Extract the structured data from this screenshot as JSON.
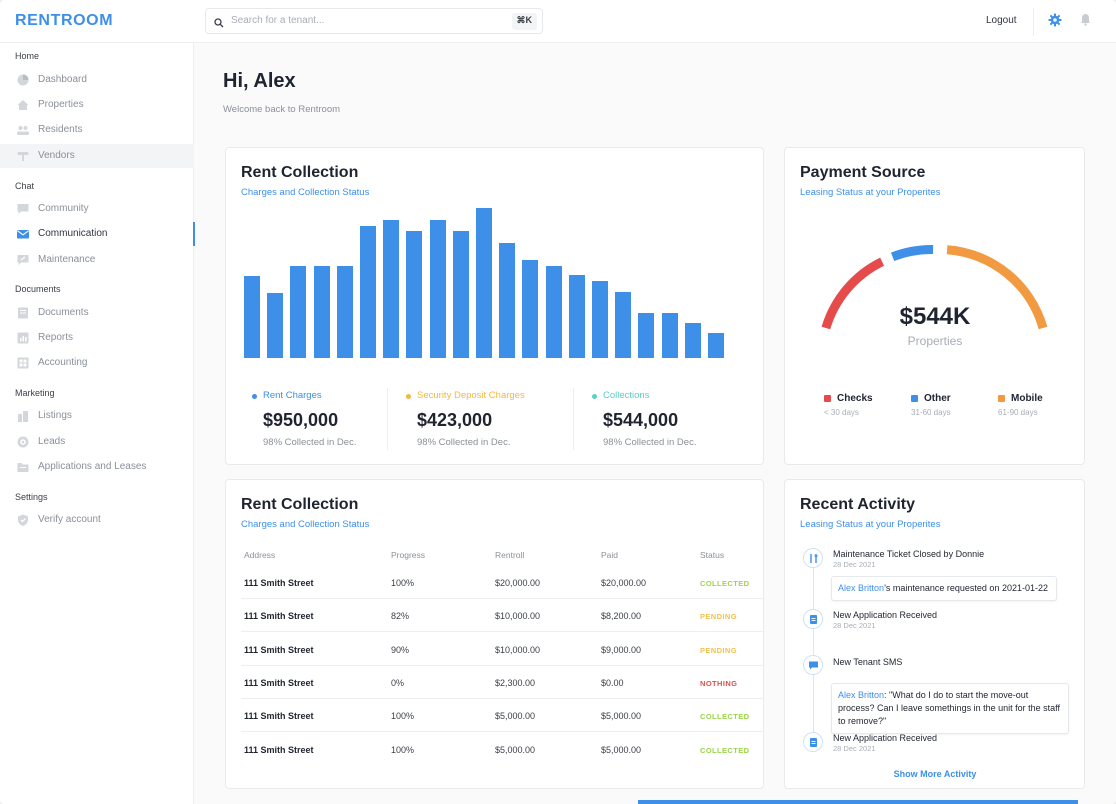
{
  "brand": "RENTROOM",
  "search": {
    "placeholder": "Search for a tenant...",
    "shortcut": "⌘K"
  },
  "header": {
    "logout": "Logout"
  },
  "sidebar": {
    "sections": [
      {
        "title": "Home",
        "items": [
          {
            "label": "Dashboard",
            "icon": "dashboard-icon"
          },
          {
            "label": "Properties",
            "icon": "home-icon"
          },
          {
            "label": "Residents",
            "icon": "people-icon"
          },
          {
            "label": "Vendors",
            "icon": "tools-icon"
          }
        ]
      },
      {
        "title": "Chat",
        "items": [
          {
            "label": "Community",
            "icon": "chat-icon"
          },
          {
            "label": "Communication",
            "icon": "mail-icon"
          },
          {
            "label": "Maintenance",
            "icon": "maintenance-icon"
          }
        ]
      },
      {
        "title": "Documents",
        "items": [
          {
            "label": "Documents",
            "icon": "document-icon"
          },
          {
            "label": "Reports",
            "icon": "report-icon"
          },
          {
            "label": "Accounting",
            "icon": "calculator-icon"
          }
        ]
      },
      {
        "title": "Marketing",
        "items": [
          {
            "label": "Listings",
            "icon": "building-icon"
          },
          {
            "label": "Leads",
            "icon": "target-icon"
          },
          {
            "label": "Applications and Leases",
            "icon": "folder-icon"
          }
        ]
      },
      {
        "title": "Settings",
        "items": [
          {
            "label": "Verify account",
            "icon": "shield-icon"
          }
        ]
      }
    ]
  },
  "greeting": {
    "title": "Hi, Alex",
    "subtitle": "Welcome back to Rentroom"
  },
  "rent_collection_chart": {
    "title": "Rent Collection",
    "subtitle": "Charges and Collection Status",
    "stats": [
      {
        "name": "Rent Charges",
        "value": "$950,000",
        "note": "98% Collected in Dec.",
        "color": "#3d8fe8"
      },
      {
        "name": "Security Deposit Charges",
        "value": "$423,000",
        "note": "98% Collected in Dec.",
        "color": "#f2b93b"
      },
      {
        "name": "Collections",
        "value": "$544,000",
        "note": "98% Collected in Dec.",
        "color": "#5ccfc0"
      }
    ]
  },
  "chart_data": {
    "type": "bar",
    "values": [
      82,
      65,
      92,
      92,
      92,
      132,
      138,
      127,
      138,
      127,
      150,
      115,
      98,
      92,
      83,
      77,
      66,
      45,
      45,
      35,
      25
    ],
    "ylim": [
      0,
      150
    ],
    "color": "#3d8fe8"
  },
  "payment_source": {
    "title": "Payment Source",
    "subtitle": "Leasing Status at your Properites",
    "value": "$544K",
    "label": "Properties",
    "legend": [
      {
        "name": "Checks",
        "range": "< 30 days",
        "color": "#e54b4b"
      },
      {
        "name": "Other",
        "range": "31-60 days",
        "color": "#3d8fe8"
      },
      {
        "name": "Mobile",
        "range": "61-90 days",
        "color": "#f29a42"
      }
    ]
  },
  "rent_table": {
    "title": "Rent Collection",
    "subtitle": "Charges and Collection Status",
    "headers": [
      "Address",
      "Progress",
      "Rentroll",
      "Paid",
      "Status"
    ],
    "rows": [
      {
        "address": "111 Smith Street",
        "progress": "100%",
        "rentroll": "$20,000.00",
        "paid": "$20,000.00",
        "status": "COLLECTED",
        "status_color": "#9ad54a"
      },
      {
        "address": "111 Smith Street",
        "progress": "82%",
        "rentroll": "$10,000.00",
        "paid": "$8,200.00",
        "status": "PENDING",
        "status_color": "#f2c14e"
      },
      {
        "address": "111 Smith Street",
        "progress": "90%",
        "rentroll": "$10,000.00",
        "paid": "$9,000.00",
        "status": "PENDING",
        "status_color": "#f2c14e"
      },
      {
        "address": "111 Smith Street",
        "progress": "0%",
        "rentroll": "$2,300.00",
        "paid": "$0.00",
        "status": "NOTHING",
        "status_color": "#d9534f"
      },
      {
        "address": "111 Smith Street",
        "progress": "100%",
        "rentroll": "$5,000.00",
        "paid": "$5,000.00",
        "status": "COLLECTED",
        "status_color": "#9ad54a"
      },
      {
        "address": "111 Smith Street",
        "progress": "100%",
        "rentroll": "$5,000.00",
        "paid": "$5,000.00",
        "status": "COLLECTED",
        "status_color": "#9ad54a"
      }
    ]
  },
  "activity": {
    "title": "Recent Activity",
    "subtitle": "Leasing Status at your Properites",
    "items": [
      {
        "title": "Maintenance Ticket Closed by Donnie",
        "date": "28 Dec 2021",
        "icon": "wrench-icon",
        "bubble_who": "Alex Britton",
        "bubble_text": "’s maintenance requested on 2021-01-22"
      },
      {
        "title": "New Application Received",
        "date": "28 Dec 2021",
        "icon": "document-icon"
      },
      {
        "title": "New Tenant SMS",
        "date": "",
        "icon": "message-icon",
        "bubble_who": "Alex Britton",
        "bubble_text": ": \"What do I do to start the move-out process? Can I leave somethings in the unit for the staff to remove?\""
      },
      {
        "title": "New Application Received",
        "date": "28 Dec 2021",
        "icon": "document-icon"
      }
    ],
    "show_more": "Show More Activity"
  }
}
